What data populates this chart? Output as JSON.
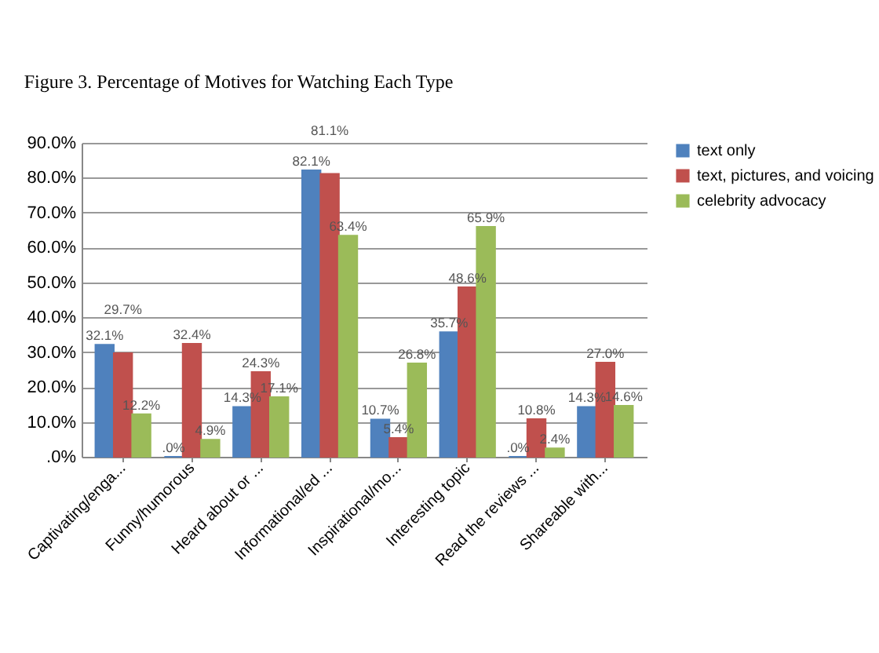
{
  "chart_data": {
    "type": "bar",
    "title": "Figure 3. Percentage of Motives for Watching Each Type",
    "categories": [
      "Captivating/enga...",
      "Funny/humorous",
      "Heard about or ...",
      "Informational/ed ...",
      "Inspirational/mo...",
      "Interesting topic",
      "Read the reviews ...",
      "Shareable with..."
    ],
    "series": [
      {
        "name": "text only",
        "color": "#4f81bd",
        "values": [
          32.1,
          0,
          14.3,
          82.1,
          10.7,
          35.7,
          0,
          14.3
        ],
        "value_labels": [
          "32.1%",
          ".0%",
          "14.3%",
          "82.1%",
          "10.7%",
          "35.7%",
          ".0%",
          "14.3%"
        ]
      },
      {
        "name": "text, pictures, and voicing",
        "color": "#c0504d",
        "values": [
          29.7,
          32.4,
          24.3,
          81.1,
          5.4,
          48.6,
          10.8,
          27.0
        ],
        "value_labels": [
          "29.7%",
          "32.4%",
          "24.3%",
          "81.1%",
          "5.4%",
          "48.6%",
          "10.8%",
          "27.0%"
        ]
      },
      {
        "name": "celebrity advocacy",
        "color": "#9bbb59",
        "values": [
          12.2,
          4.9,
          17.1,
          63.4,
          26.8,
          65.9,
          2.4,
          14.6
        ],
        "value_labels": [
          "12.2%",
          "4.9%",
          "17.1%",
          "63.4%",
          "26.8%",
          "65.9%",
          "2.4%",
          "14.6%"
        ]
      }
    ],
    "ylim": [
      0,
      90
    ],
    "yticks": [
      {
        "value": 0,
        "label": ".0%"
      },
      {
        "value": 10,
        "label": "10.0%"
      },
      {
        "value": 20,
        "label": "20.0%"
      },
      {
        "value": 30,
        "label": "30.0%"
      },
      {
        "value": 40,
        "label": "40.0%"
      },
      {
        "value": 50,
        "label": "50.0%"
      },
      {
        "value": 60,
        "label": "60.0%"
      },
      {
        "value": 70,
        "label": "70.0%"
      },
      {
        "value": 80,
        "label": "80.0%"
      },
      {
        "value": 90,
        "label": "90.0%"
      }
    ],
    "grid": "y",
    "legend": "top right"
  }
}
